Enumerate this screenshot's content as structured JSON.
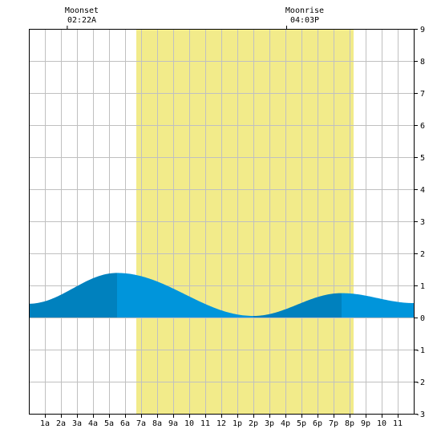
{
  "annotations": {
    "moonset": {
      "label": "Moonset",
      "time": "02:22A",
      "hour": 2.37
    },
    "moonrise": {
      "label": "Moonrise",
      "time": "04:03P",
      "hour": 16.05
    }
  },
  "chart_data": {
    "type": "area",
    "title": "",
    "xlabel": "",
    "ylabel": "",
    "xlim": [
      0,
      24
    ],
    "ylim": [
      -3,
      9
    ],
    "grid": true,
    "x_ticks": [
      {
        "hour": 1,
        "label": "1a"
      },
      {
        "hour": 2,
        "label": "2a"
      },
      {
        "hour": 3,
        "label": "3a"
      },
      {
        "hour": 4,
        "label": "4a"
      },
      {
        "hour": 5,
        "label": "5a"
      },
      {
        "hour": 6,
        "label": "6a"
      },
      {
        "hour": 7,
        "label": "7a"
      },
      {
        "hour": 8,
        "label": "8a"
      },
      {
        "hour": 9,
        "label": "9a"
      },
      {
        "hour": 10,
        "label": "10"
      },
      {
        "hour": 11,
        "label": "11"
      },
      {
        "hour": 12,
        "label": "12"
      },
      {
        "hour": 13,
        "label": "1p"
      },
      {
        "hour": 14,
        "label": "2p"
      },
      {
        "hour": 15,
        "label": "3p"
      },
      {
        "hour": 16,
        "label": "4p"
      },
      {
        "hour": 17,
        "label": "5p"
      },
      {
        "hour": 18,
        "label": "6p"
      },
      {
        "hour": 19,
        "label": "7p"
      },
      {
        "hour": 20,
        "label": "8p"
      },
      {
        "hour": 21,
        "label": "9p"
      },
      {
        "hour": 22,
        "label": "10"
      },
      {
        "hour": 23,
        "label": "11"
      }
    ],
    "y_ticks": [
      {
        "value": 9,
        "label": "9"
      },
      {
        "value": 8,
        "label": "8"
      },
      {
        "value": 7,
        "label": "7"
      },
      {
        "value": 6,
        "label": "6"
      },
      {
        "value": 5,
        "label": "5"
      },
      {
        "value": 4,
        "label": "4"
      },
      {
        "value": 3,
        "label": "3"
      },
      {
        "value": 2,
        "label": "2"
      },
      {
        "value": 1,
        "label": "1"
      },
      {
        "value": 0,
        "label": "0"
      },
      {
        "value": -1,
        "label": "-1"
      },
      {
        "value": -2,
        "label": "-2"
      },
      {
        "value": -3,
        "label": "-3"
      }
    ],
    "daylight": {
      "start_hour": 6.7,
      "end_hour": 20.25
    },
    "tide_extremes": [
      {
        "hour": 0.0,
        "value": 0.43
      },
      {
        "hour": 5.5,
        "value": 1.39
      },
      {
        "hour": 14.0,
        "value": 0.05
      },
      {
        "hour": 19.5,
        "value": 0.76
      },
      {
        "hour": 24.0,
        "value": 0.45
      }
    ],
    "colors": {
      "background": "#ffffff",
      "grid": "#c0c0c0",
      "daylight": "#f2eb8a",
      "tide": "#0095db",
      "tide_dark": "#0081be",
      "axis": "#000000"
    }
  }
}
